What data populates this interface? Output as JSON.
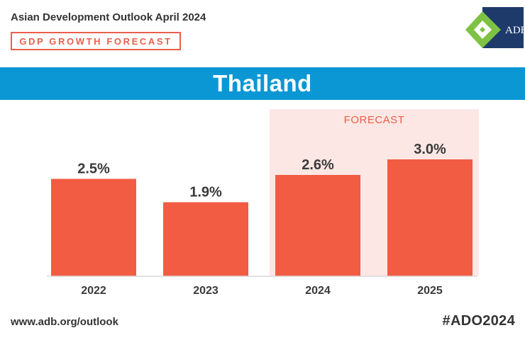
{
  "header": {
    "title": "Asian Development Outlook April 2024",
    "subtitle": "GDP GROWTH FORECAST",
    "logo_text": "ADB"
  },
  "banner": {
    "title": "Thailand"
  },
  "colors": {
    "bar": "#f25c42",
    "forecast_band": "#fde7e4",
    "banner": "#0b97d4",
    "accent": "#e8604c",
    "logo_green": "#7dc243",
    "logo_navy": "#1d3a6b"
  },
  "chart_data": {
    "type": "bar",
    "title": "Thailand",
    "categories": [
      "2022",
      "2023",
      "2024",
      "2025"
    ],
    "values": [
      2.5,
      1.9,
      2.6,
      3.0
    ],
    "labels": [
      "2.5%",
      "1.9%",
      "2.6%",
      "3.0%"
    ],
    "forecast_label": "FORECAST",
    "forecast_categories": [
      "2024",
      "2025"
    ],
    "xlabel": "",
    "ylabel": "",
    "ylim": [
      0,
      3.0
    ],
    "grid": false,
    "unit": "%"
  },
  "footer": {
    "url": "www.adb.org/outlook",
    "hashtag": "#ADO2024"
  }
}
